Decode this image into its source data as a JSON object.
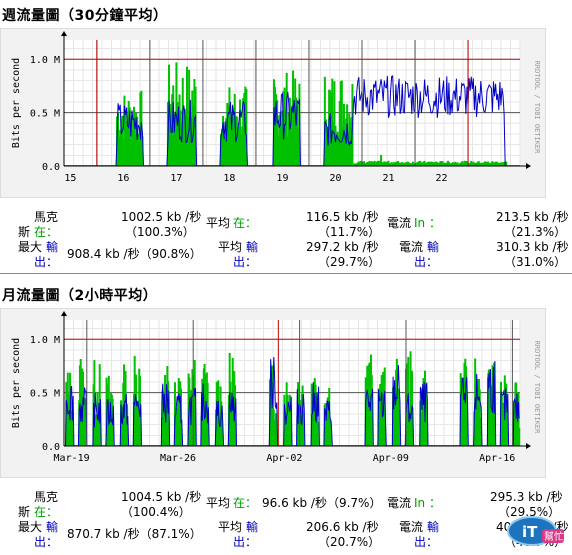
{
  "weekly": {
    "title": "週流量圖（30分鐘平均）",
    "side_label": "RRDTOOL / TOBI OETIKER",
    "chart_data": {
      "type": "area",
      "ylabel": "Bits per second",
      "ylim": [
        0,
        1.18
      ],
      "y_ticks": [
        "0.0",
        "0.5 M",
        "1.0 M"
      ],
      "y_tick_values": [
        0,
        0.5,
        1.0
      ],
      "x_labels": [
        "15",
        "16",
        "17",
        "18",
        "19",
        "20",
        "21",
        "22"
      ],
      "x_range": [
        0,
        8.6
      ],
      "x_label_positions": [
        0.12,
        1.12,
        2.12,
        3.12,
        4.12,
        5.12,
        6.12,
        7.12
      ],
      "major_lines": [
        0.62,
        1.62,
        2.62,
        3.62,
        4.62,
        5.62,
        6.62,
        7.62
      ],
      "red_lines": [
        0.62,
        7.62
      ],
      "series": [
        {
          "name": "in",
          "color": "#00c000",
          "bursts": [
            [
              1.0,
              1.5,
              0.72
            ],
            [
              1.95,
              2.5,
              0.98
            ],
            [
              2.95,
              3.45,
              0.76
            ],
            [
              3.95,
              4.45,
              0.9
            ],
            [
              4.9,
              5.45,
              0.9
            ]
          ],
          "baseline": [
            [
              5.45,
              8.35,
              0.035
            ]
          ]
        },
        {
          "name": "out",
          "color": "#0000c8",
          "bursts": [
            [
              1.0,
              1.5,
              0.6
            ],
            [
              1.95,
              2.5,
              0.62
            ],
            [
              2.95,
              3.45,
              0.62
            ],
            [
              3.95,
              4.45,
              0.7
            ],
            [
              4.9,
              5.45,
              0.5
            ]
          ],
          "plateau": [
            [
              5.45,
              8.3,
              0.45,
              0.85
            ]
          ]
        }
      ]
    },
    "stats": {
      "max_label1": "馬克",
      "max_label2": "斯",
      "in_label": "在：",
      "max_in": "1002.5 kb /秒",
      "max_in_pct": "（100.3%）",
      "avg_label": "平均",
      "avg_in_label": "在：",
      "avg_in": "116.5 kb /秒",
      "avg_in_pct": "（11.7%）",
      "cur_label": "電流",
      "cur_in_label": "In ：",
      "cur_in": "213.5 kb /秒",
      "cur_in_pct": "（21.3%）",
      "max_out_label1": "最大",
      "max_out_label2": "輸",
      "max_out_label3": "出：",
      "max_out": "908.4 kb /秒（90.8%）",
      "avg_out_label1": "平均",
      "avg_out_label2": "輸",
      "avg_out_label3": "出：",
      "avg_out": "297.2 kb /秒",
      "avg_out_pct": "（29.7%）",
      "cur_out_label1": "電流",
      "cur_out_label2": "輸",
      "cur_out_label3": "出：",
      "cur_out": "310.3 kb /秒",
      "cur_out_pct": "（31.0%）"
    }
  },
  "monthly": {
    "title": "月流量圖（2小時平均）",
    "side_label": "RRDTOOL / TOBI OETIKER",
    "chart_data": {
      "type": "area",
      "ylabel": "Bits per second",
      "ylim": [
        0,
        1.18
      ],
      "y_ticks": [
        "0.0",
        "0.5 M",
        "1.0 M"
      ],
      "y_tick_values": [
        0,
        0.5,
        1.0
      ],
      "x_labels": [
        "Mar-19",
        "Mar-26",
        "Apr-02",
        "Apr-09",
        "Apr-16"
      ],
      "x_range": [
        0,
        30
      ],
      "x_label_positions": [
        0.5,
        7.5,
        14.5,
        21.5,
        28.5
      ],
      "major_lines": [
        1.5,
        8.5,
        15.5,
        22.5,
        29.5
      ],
      "red_lines": [
        14.1
      ],
      "series": [
        {
          "name": "in",
          "color": "#00c000",
          "days": [
            0.15,
            1.1,
            2.15,
            3.1,
            4.15,
            5.1,
            7.15,
            8.1,
            9.15,
            10.1,
            11.15,
            12.1,
            15.1,
            16.15,
            17.1,
            18.15,
            19.1,
            22.15,
            23.1,
            24.15,
            25.1,
            26.15,
            29.1,
            30.15,
            31.1,
            32.1,
            33.0
          ],
          "peaks": [
            0.75,
            0.9,
            0.82,
            0.7,
            0.78,
            0.9,
            0.8,
            0.7,
            0.85,
            0.8,
            0.75,
            0.88,
            0.78,
            0.72,
            0.84,
            0.8,
            0.7,
            0.88,
            0.76,
            0.82,
            0.9,
            0.78,
            0.82,
            0.9,
            0.8,
            0.7,
            0.6
          ]
        },
        {
          "name": "out",
          "color": "#0000c8",
          "days": [
            0.15,
            1.1,
            2.15,
            3.1,
            4.15,
            5.1,
            7.15,
            8.1,
            9.15,
            10.1,
            11.15,
            12.1,
            15.1,
            16.15,
            17.1,
            18.15,
            19.1,
            22.15,
            23.1,
            24.15,
            25.1,
            26.15,
            29.1,
            30.15,
            31.1,
            32.1,
            33.0
          ],
          "peaks": [
            0.65,
            0.55,
            0.5,
            0.45,
            0.5,
            0.55,
            0.6,
            0.5,
            0.55,
            0.6,
            0.45,
            0.55,
            0.85,
            0.5,
            0.55,
            0.6,
            0.45,
            0.6,
            0.55,
            0.78,
            0.5,
            0.6,
            0.65,
            0.7,
            0.85,
            0.55,
            0.5
          ]
        }
      ]
    },
    "stats": {
      "max_label1": "馬克",
      "max_label2": "斯",
      "in_label": "在：",
      "max_in": "1004.5 kb /秒",
      "max_in_pct": "（100.4%）",
      "avg_label": "平均",
      "avg_in_label": "在：",
      "avg_in": "96.6 kb /秒（9.7%）",
      "cur_label": "電流",
      "cur_in_label": "In ：",
      "cur_in": "295.3 kb /秒",
      "cur_in_pct": "（29.5%）",
      "max_out_label1": "最大",
      "max_out_label2": "輸",
      "max_out_label3": "出：",
      "max_out": "870.7 kb /秒（87.1%）",
      "avg_out_label1": "平均",
      "avg_out_label2": "輸",
      "avg_out_label3": "出：",
      "avg_out": "206.6 kb /秒",
      "avg_out_pct": "（20.7%）",
      "cur_out_label1": "電流",
      "cur_out_label2": "輸",
      "cur_out_label3": "出：",
      "cur_out": "406.9 kb /秒",
      "cur_out_pct": "（40.7%）"
    }
  },
  "logo": {
    "text_main": "iT",
    "text_sub": "幫忙"
  }
}
